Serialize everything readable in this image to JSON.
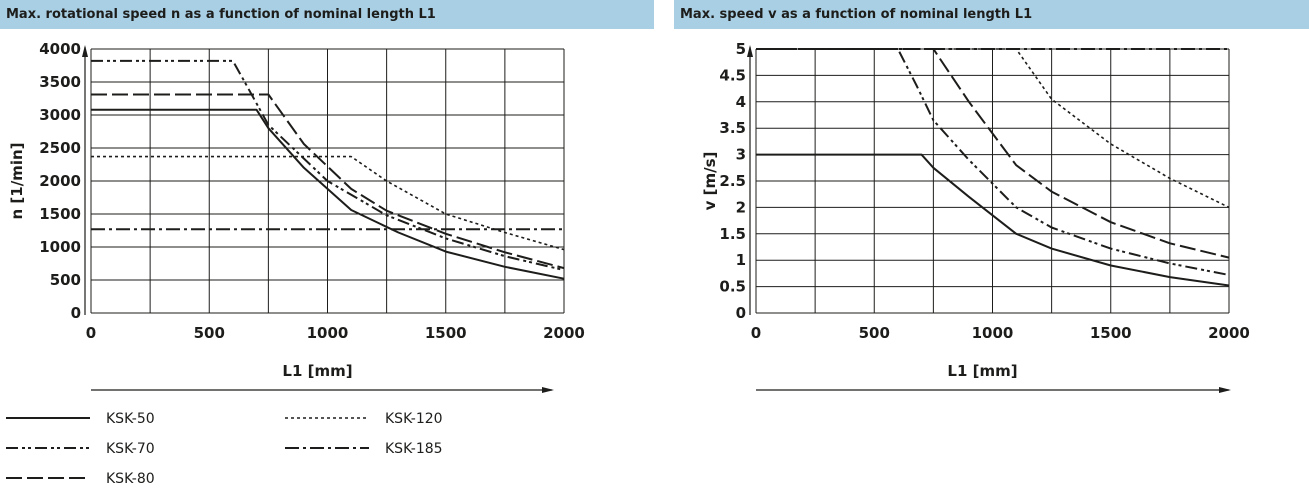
{
  "headers": {
    "left": "Max. rotational speed n as a function of nominal length L1",
    "right": "Max. speed v as a function of nominal length L1"
  },
  "colors": {
    "header_bg": "#a9cfe4",
    "ink": "#1d1d1b",
    "grid": "#1d1d1b"
  },
  "legend": [
    {
      "name": "KSK-50",
      "style": "solid"
    },
    {
      "name": "KSK-70",
      "style": "dash-dot-dot"
    },
    {
      "name": "KSK-80",
      "style": "long-dash"
    },
    {
      "name": "KSK-120",
      "style": "dotted"
    },
    {
      "name": "KSK-185",
      "style": "dash-dot"
    }
  ],
  "chart_data": [
    {
      "type": "line",
      "title": "Max. rotational speed n as a function of nominal length L1",
      "xlabel": "L1 [mm]",
      "ylabel": "n [1/min]",
      "xlim": [
        0,
        2000
      ],
      "ylim": [
        0,
        4000
      ],
      "x_ticks": [
        "0",
        "500",
        "1000",
        "1500",
        "2000"
      ],
      "y_ticks": [
        "0",
        "500",
        "1000",
        "1500",
        "2000",
        "2500",
        "3000",
        "3500",
        "4000"
      ],
      "grid": true,
      "series": [
        {
          "name": "KSK-50",
          "style": "solid",
          "points": [
            [
              0,
              3080
            ],
            [
              700,
              3080
            ],
            [
              750,
              2800
            ],
            [
              900,
              2200
            ],
            [
              1100,
              1560
            ],
            [
              1300,
              1220
            ],
            [
              1500,
              930
            ],
            [
              1750,
              700
            ],
            [
              2000,
              520
            ]
          ]
        },
        {
          "name": "KSK-70",
          "style": "dash-dot-dot",
          "points": [
            [
              0,
              3820
            ],
            [
              600,
              3820
            ],
            [
              650,
              3500
            ],
            [
              750,
              2850
            ],
            [
              1000,
              2000
            ],
            [
              1250,
              1480
            ],
            [
              1500,
              1130
            ],
            [
              1750,
              860
            ],
            [
              2000,
              650
            ]
          ]
        },
        {
          "name": "KSK-80",
          "style": "long-dash",
          "points": [
            [
              0,
              3310
            ],
            [
              750,
              3310
            ],
            [
              900,
              2560
            ],
            [
              1100,
              1880
            ],
            [
              1250,
              1550
            ],
            [
              1500,
              1200
            ],
            [
              1750,
              920
            ],
            [
              2000,
              680
            ]
          ]
        },
        {
          "name": "KSK-120",
          "style": "dotted",
          "points": [
            [
              0,
              2370
            ],
            [
              1100,
              2370
            ],
            [
              1250,
              2000
            ],
            [
              1500,
              1500
            ],
            [
              1750,
              1220
            ],
            [
              2000,
              960
            ]
          ]
        },
        {
          "name": "KSK-185",
          "style": "dash-dot",
          "points": [
            [
              0,
              1270
            ],
            [
              2000,
              1270
            ]
          ]
        }
      ]
    },
    {
      "type": "line",
      "title": "Max. speed v as a function of nominal length L1",
      "xlabel": "L1 [mm]",
      "ylabel": "v [m/s]",
      "xlim": [
        0,
        2000
      ],
      "ylim": [
        0,
        5
      ],
      "x_ticks": [
        "0",
        "500",
        "1000",
        "1500",
        "2000"
      ],
      "y_ticks": [
        "0",
        "0.5",
        "1",
        "1.5",
        "2",
        "2.5",
        "3",
        "3.5",
        "4",
        "4.5",
        "5"
      ],
      "grid": true,
      "series": [
        {
          "name": "KSK-50",
          "style": "solid",
          "points": [
            [
              0,
              3
            ],
            [
              700,
              3
            ],
            [
              750,
              2.75
            ],
            [
              900,
              2.2
            ],
            [
              1100,
              1.5
            ],
            [
              1250,
              1.22
            ],
            [
              1500,
              0.9
            ],
            [
              1750,
              0.68
            ],
            [
              2000,
              0.52
            ]
          ]
        },
        {
          "name": "KSK-70",
          "style": "dash-dot-dot",
          "points": [
            [
              0,
              5
            ],
            [
              600,
              5
            ],
            [
              680,
              4.3
            ],
            [
              750,
              3.65
            ],
            [
              900,
              2.9
            ],
            [
              1100,
              2.0
            ],
            [
              1250,
              1.62
            ],
            [
              1500,
              1.22
            ],
            [
              1750,
              0.94
            ],
            [
              2000,
              0.72
            ]
          ]
        },
        {
          "name": "KSK-80",
          "style": "long-dash",
          "points": [
            [
              0,
              5
            ],
            [
              750,
              5
            ],
            [
              900,
              4.0
            ],
            [
              1100,
              2.8
            ],
            [
              1250,
              2.3
            ],
            [
              1500,
              1.72
            ],
            [
              1750,
              1.32
            ],
            [
              2000,
              1.05
            ]
          ]
        },
        {
          "name": "KSK-120",
          "style": "dotted",
          "points": [
            [
              0,
              5
            ],
            [
              1100,
              5
            ],
            [
              1250,
              4.05
            ],
            [
              1500,
              3.2
            ],
            [
              1750,
              2.55
            ],
            [
              2000,
              2.0
            ]
          ]
        },
        {
          "name": "KSK-185",
          "style": "dash-dot",
          "points": [
            [
              0,
              5
            ],
            [
              2000,
              5
            ]
          ]
        }
      ]
    }
  ]
}
